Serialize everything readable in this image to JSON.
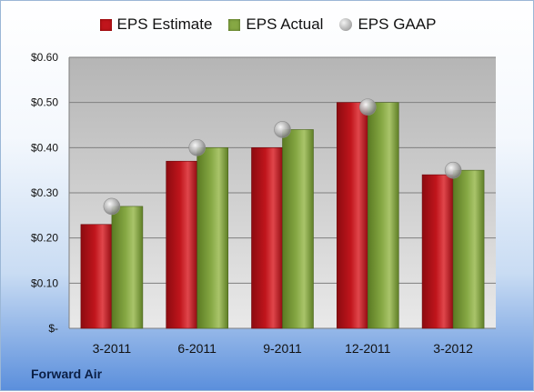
{
  "legend": {
    "estimate": "EPS Estimate",
    "actual": "EPS Actual",
    "gaap": "EPS GAAP"
  },
  "footer": {
    "company": "Forward Air"
  },
  "colors": {
    "estimate": "#c0151c",
    "actual": "#86a844",
    "gaap": "#b3b3b3",
    "plot_top": "#b5b5b5",
    "plot_bottom": "#e9e9e9"
  },
  "chart_data": {
    "type": "bar",
    "categories": [
      "3-2011",
      "6-2011",
      "9-2011",
      "12-2011",
      "3-2012"
    ],
    "series": [
      {
        "name": "EPS Estimate",
        "type": "bar",
        "values": [
          0.23,
          0.37,
          0.4,
          0.5,
          0.34
        ]
      },
      {
        "name": "EPS Actual",
        "type": "bar",
        "values": [
          0.27,
          0.4,
          0.44,
          0.5,
          0.35
        ]
      },
      {
        "name": "EPS GAAP",
        "type": "scatter",
        "values": [
          0.27,
          0.4,
          0.44,
          0.49,
          0.35
        ]
      }
    ],
    "ylim": [
      0,
      0.6
    ],
    "yticks": [
      0,
      0.1,
      0.2,
      0.3,
      0.4,
      0.5,
      0.6
    ],
    "ytick_labels": [
      "$-",
      "$0.10",
      "$0.20",
      "$0.30",
      "$0.40",
      "$0.50",
      "$0.60"
    ],
    "grid": true,
    "legend_position": "top"
  }
}
